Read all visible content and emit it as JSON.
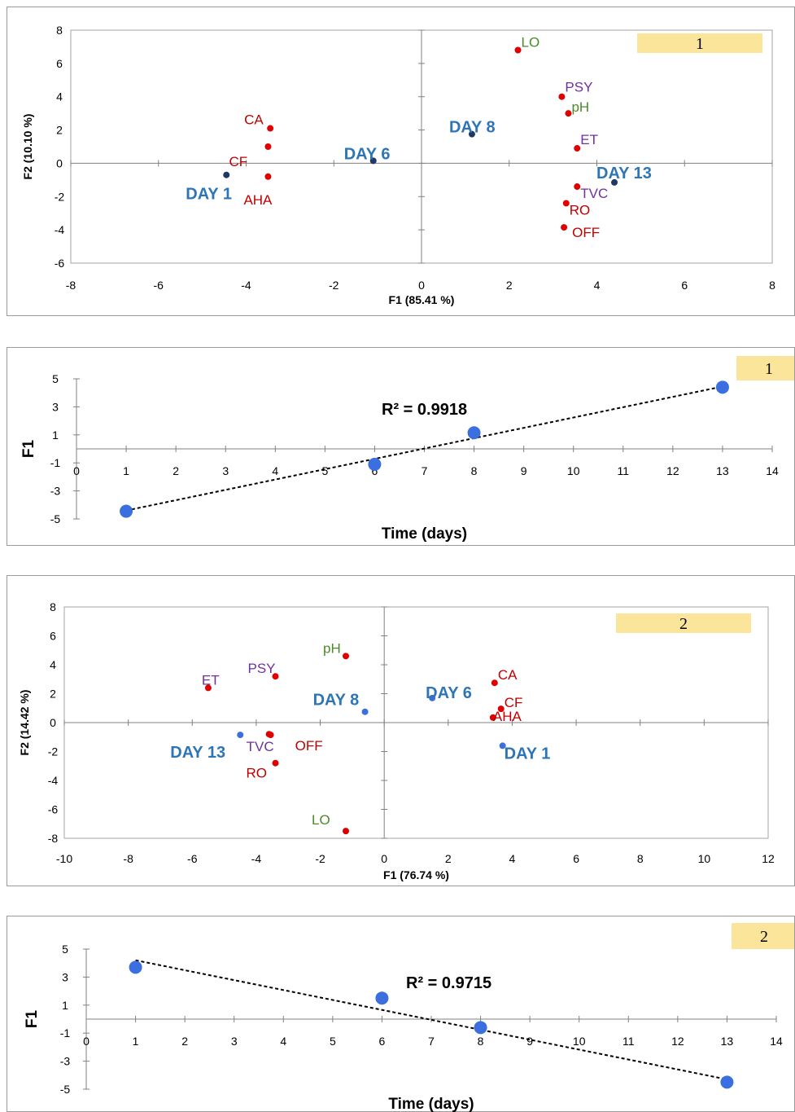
{
  "colors": {
    "red": "#e00000",
    "darkred": "#c00000",
    "green": "#4a8a2a",
    "purple": "#7030a0",
    "blue": "#2e75b6",
    "dot_blue": "#3b6fe0",
    "badge": "#fbe59a",
    "axis": "#808080"
  },
  "chart_data": [
    {
      "type": "scatter",
      "badge": "1",
      "xlabel": "F1 (85.41 %)",
      "ylabel": "F2 (10.10 %)",
      "xlim": [
        -8,
        8
      ],
      "ylim": [
        -6,
        8
      ],
      "xticks": [
        -8,
        -6,
        -4,
        -2,
        0,
        2,
        4,
        6,
        8
      ],
      "yticks": [
        -6,
        -4,
        -2,
        0,
        2,
        4,
        6,
        8
      ],
      "variables": [
        {
          "label": "LO",
          "x": 2.2,
          "y": 6.8,
          "color": "green"
        },
        {
          "label": "PSY",
          "x": 3.2,
          "y": 4.0,
          "color": "purple"
        },
        {
          "label": "pH",
          "x": 3.35,
          "y": 3.0,
          "color": "green"
        },
        {
          "label": "ET",
          "x": 3.55,
          "y": 0.9,
          "color": "purple"
        },
        {
          "label": "TVC",
          "x": 3.55,
          "y": -1.4,
          "color": "purple"
        },
        {
          "label": "RO",
          "x": 3.3,
          "y": -2.4,
          "color": "darkred"
        },
        {
          "label": "OFF",
          "x": 3.25,
          "y": -3.85,
          "color": "darkred"
        },
        {
          "label": "CA",
          "x": -3.45,
          "y": 2.1,
          "color": "darkred"
        },
        {
          "label": "CF",
          "x": -3.5,
          "y": 1.0,
          "color": "darkred"
        },
        {
          "label": "AHA",
          "x": -3.5,
          "y": -0.8,
          "color": "darkred"
        }
      ],
      "observations": [
        {
          "label": "DAY 1",
          "x": -4.45,
          "y": -0.7
        },
        {
          "label": "DAY 6",
          "x": -1.1,
          "y": 0.15
        },
        {
          "label": "DAY 8",
          "x": 1.15,
          "y": 1.75
        },
        {
          "label": "DAY 13",
          "x": 4.4,
          "y": -1.15
        }
      ]
    },
    {
      "type": "scatter",
      "badge": "1",
      "xlabel": "Time (days)",
      "ylabel": "F1",
      "annotation": "R² = 0.9918",
      "xlim": [
        0,
        14
      ],
      "ylim": [
        -5,
        5
      ],
      "xticks": [
        0,
        1,
        2,
        3,
        4,
        5,
        6,
        7,
        8,
        9,
        10,
        11,
        12,
        13,
        14
      ],
      "yticks": [
        -5,
        -3,
        -1,
        1,
        3,
        5
      ],
      "x": [
        1,
        6,
        8,
        13
      ],
      "y": [
        -4.45,
        -1.1,
        1.15,
        4.4
      ],
      "trendline": {
        "x": [
          1,
          13
        ],
        "y": [
          -4.4,
          4.45
        ]
      }
    },
    {
      "type": "scatter",
      "badge": "2",
      "xlabel": "F1 (76.74 %)",
      "ylabel": "F2 (14.42 %)",
      "xlim": [
        -10,
        12
      ],
      "ylim": [
        -8,
        8
      ],
      "xticks": [
        -10,
        -8,
        -6,
        -4,
        -2,
        0,
        2,
        4,
        6,
        8,
        10,
        12
      ],
      "yticks": [
        -8,
        -6,
        -4,
        -2,
        0,
        2,
        4,
        6,
        8
      ],
      "variables": [
        {
          "label": "pH",
          "x": -1.2,
          "y": 4.6,
          "color": "green"
        },
        {
          "label": "PSY",
          "x": -3.4,
          "y": 3.2,
          "color": "purple"
        },
        {
          "label": "ET",
          "x": -5.5,
          "y": 2.4,
          "color": "purple"
        },
        {
          "label": "OFF",
          "x": -3.6,
          "y": -0.8,
          "color": "darkred"
        },
        {
          "label": "TVC",
          "x": -3.55,
          "y": -0.85,
          "color": "purple"
        },
        {
          "label": "RO",
          "x": -3.4,
          "y": -2.8,
          "color": "darkred"
        },
        {
          "label": "LO",
          "x": -1.2,
          "y": -7.5,
          "color": "green"
        },
        {
          "label": "CA",
          "x": 3.45,
          "y": 2.75,
          "color": "darkred"
        },
        {
          "label": "CF",
          "x": 3.65,
          "y": 0.95,
          "color": "darkred"
        },
        {
          "label": "AHA",
          "x": 3.4,
          "y": 0.35,
          "color": "darkred"
        }
      ],
      "observations": [
        {
          "label": "DAY 1",
          "x": 3.7,
          "y": -1.6
        },
        {
          "label": "DAY 6",
          "x": 1.5,
          "y": 1.7
        },
        {
          "label": "DAY 8",
          "x": -0.6,
          "y": 0.75
        },
        {
          "label": "DAY 13",
          "x": -4.5,
          "y": -0.85
        }
      ]
    },
    {
      "type": "scatter",
      "badge": "2",
      "xlabel": "Time (days)",
      "ylabel": "F1",
      "annotation": "R² = 0.9715",
      "xlim": [
        0,
        14
      ],
      "ylim": [
        -5,
        5
      ],
      "xticks": [
        0,
        1,
        2,
        3,
        4,
        5,
        6,
        7,
        8,
        9,
        10,
        11,
        12,
        13,
        14
      ],
      "yticks": [
        -5,
        -3,
        -1,
        1,
        3,
        5
      ],
      "x": [
        1,
        6,
        8,
        13
      ],
      "y": [
        3.7,
        1.5,
        -0.6,
        -4.5
      ],
      "trendline": {
        "x": [
          1,
          13
        ],
        "y": [
          4.2,
          -4.3
        ]
      }
    }
  ]
}
